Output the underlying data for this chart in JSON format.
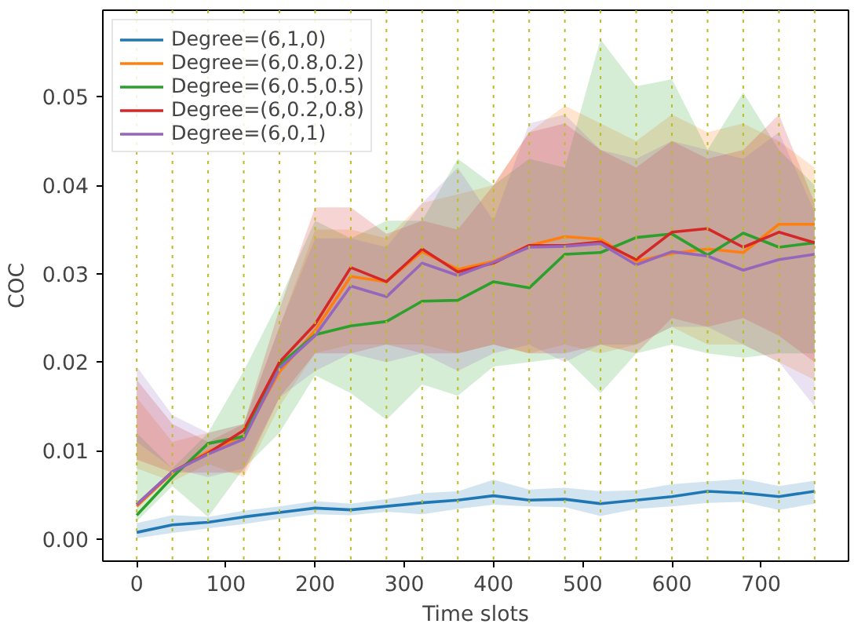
{
  "chart_data": {
    "type": "line",
    "xlabel": "Time slots",
    "ylabel": "COC",
    "x": [
      0,
      40,
      80,
      120,
      160,
      200,
      240,
      280,
      320,
      360,
      400,
      440,
      480,
      520,
      560,
      600,
      640,
      680,
      720,
      760
    ],
    "xlim": [
      -38,
      798
    ],
    "ylim": [
      -0.0025,
      0.0598
    ],
    "xticks": [
      0,
      100,
      200,
      300,
      400,
      500,
      600,
      700
    ],
    "yticks": [
      {
        "value": 0,
        "label": "0.00"
      },
      {
        "value": 0.01,
        "label": "0.01"
      },
      {
        "value": 0.02,
        "label": "0.02"
      },
      {
        "value": 0.03,
        "label": "0.03"
      },
      {
        "value": 0.04,
        "label": "0.04"
      },
      {
        "value": 0.05,
        "label": "0.05"
      }
    ],
    "grid": false,
    "legend": "top left",
    "marker": "none",
    "line_style": "solid",
    "series": [
      {
        "name": "Degree=(6,1,0)",
        "color": "#1f77b4",
        "values": [
          0.00075,
          0.0016,
          0.0019,
          0.0025,
          0.003,
          0.0035,
          0.0033,
          0.0037,
          0.0041,
          0.0044,
          0.0049,
          0.0044,
          0.0045,
          0.004,
          0.0044,
          0.0048,
          0.0054,
          0.0052,
          0.0048,
          0.0054
        ],
        "lower": [
          0.0001,
          0.0007,
          0.0012,
          0.0017,
          0.0023,
          0.0028,
          0.0027,
          0.0031,
          0.0028,
          0.0034,
          0.0039,
          0.0037,
          0.0036,
          0.0026,
          0.0034,
          0.0037,
          0.0041,
          0.0042,
          0.0033,
          0.004
        ],
        "upper": [
          0.0018,
          0.0027,
          0.0025,
          0.0032,
          0.0037,
          0.0043,
          0.004,
          0.0045,
          0.0052,
          0.0054,
          0.0067,
          0.0056,
          0.0058,
          0.0054,
          0.0055,
          0.0062,
          0.0065,
          0.0068,
          0.006,
          0.0066
        ]
      },
      {
        "name": "Degree=(6,0.8,0.2)",
        "color": "#ff7f0e",
        "values": [
          0.0037,
          0.0075,
          0.0099,
          0.0117,
          0.0189,
          0.0236,
          0.0297,
          0.0291,
          0.0325,
          0.0305,
          0.0314,
          0.0332,
          0.0342,
          0.0339,
          0.0314,
          0.0323,
          0.0328,
          0.0324,
          0.0356,
          0.0356
        ],
        "lower": [
          0.008,
          0.0065,
          0.0085,
          0.007,
          0.015,
          0.021,
          0.022,
          0.022,
          0.022,
          0.021,
          0.022,
          0.021,
          0.022,
          0.021,
          0.022,
          0.024,
          0.022,
          0.022,
          0.02,
          0.018
        ],
        "upper": [
          0.016,
          0.011,
          0.012,
          0.013,
          0.024,
          0.035,
          0.035,
          0.034,
          0.038,
          0.039,
          0.04,
          0.046,
          0.049,
          0.047,
          0.045,
          0.048,
          0.046,
          0.047,
          0.045,
          0.042
        ]
      },
      {
        "name": "Degree=(6,0.5,0.5)",
        "color": "#2ca02c",
        "values": [
          0.0027,
          0.007,
          0.0108,
          0.0116,
          0.0197,
          0.0231,
          0.0241,
          0.0246,
          0.0269,
          0.027,
          0.0291,
          0.0284,
          0.0322,
          0.0324,
          0.0341,
          0.0345,
          0.0321,
          0.0346,
          0.033,
          0.0335
        ],
        "lower": [
          0.002,
          0.006,
          0.0025,
          0.008,
          0.012,
          0.0185,
          0.0165,
          0.0135,
          0.0175,
          0.0162,
          0.0195,
          0.02,
          0.0205,
          0.0165,
          0.021,
          0.022,
          0.021,
          0.0205,
          0.021,
          0.021
        ],
        "upper": [
          0.012,
          0.008,
          0.012,
          0.019,
          0.027,
          0.036,
          0.034,
          0.036,
          0.036,
          0.043,
          0.04,
          0.043,
          0.042,
          0.0565,
          0.0512,
          0.052,
          0.044,
          0.0505,
          0.044,
          0.04
        ]
      },
      {
        "name": "Degree=(6,0.2,0.8)",
        "color": "#d62728",
        "values": [
          0.0039,
          0.0076,
          0.0097,
          0.0123,
          0.02,
          0.0243,
          0.0307,
          0.0291,
          0.0328,
          0.0302,
          0.0312,
          0.0332,
          0.0332,
          0.0336,
          0.0316,
          0.0347,
          0.0351,
          0.033,
          0.0347,
          0.0335
        ],
        "lower": [
          0.009,
          0.0075,
          0.0075,
          0.0075,
          0.016,
          0.021,
          0.021,
          0.022,
          0.021,
          0.021,
          0.022,
          0.021,
          0.021,
          0.022,
          0.021,
          0.025,
          0.024,
          0.025,
          0.023,
          0.02
        ],
        "upper": [
          0.018,
          0.013,
          0.011,
          0.013,
          0.026,
          0.0375,
          0.0375,
          0.0345,
          0.036,
          0.035,
          0.04,
          0.046,
          0.047,
          0.044,
          0.042,
          0.045,
          0.043,
          0.044,
          0.048,
          0.038
        ]
      },
      {
        "name": "Degree=(6,0,1)",
        "color": "#9467bd",
        "values": [
          0.0039,
          0.0076,
          0.0096,
          0.0113,
          0.0193,
          0.023,
          0.0286,
          0.0274,
          0.0312,
          0.0298,
          0.0313,
          0.033,
          0.0331,
          0.0334,
          0.031,
          0.0325,
          0.032,
          0.0304,
          0.0316,
          0.0322
        ],
        "lower": [
          0.011,
          0.008,
          0.007,
          0.008,
          0.016,
          0.019,
          0.021,
          0.02,
          0.021,
          0.019,
          0.021,
          0.022,
          0.02,
          0.022,
          0.022,
          0.024,
          0.024,
          0.022,
          0.02,
          0.015
        ],
        "upper": [
          0.0195,
          0.014,
          0.012,
          0.013,
          0.024,
          0.034,
          0.034,
          0.033,
          0.038,
          0.042,
          0.036,
          0.047,
          0.048,
          0.044,
          0.043,
          0.045,
          0.044,
          0.043,
          0.046,
          0.037
        ]
      }
    ],
    "ref_lines": [
      {
        "axis": "x",
        "value": 0,
        "color": "#bcbd22",
        "line_style": "dotted"
      },
      {
        "axis": "x",
        "value": 40,
        "color": "#bcbd22",
        "line_style": "dotted"
      },
      {
        "axis": "x",
        "value": 80,
        "color": "#bcbd22",
        "line_style": "dotted"
      },
      {
        "axis": "x",
        "value": 120,
        "color": "#bcbd22",
        "line_style": "dotted"
      },
      {
        "axis": "x",
        "value": 160,
        "color": "#bcbd22",
        "line_style": "dotted"
      },
      {
        "axis": "x",
        "value": 200,
        "color": "#bcbd22",
        "line_style": "dotted"
      },
      {
        "axis": "x",
        "value": 240,
        "color": "#bcbd22",
        "line_style": "dotted"
      },
      {
        "axis": "x",
        "value": 280,
        "color": "#bcbd22",
        "line_style": "dotted"
      },
      {
        "axis": "x",
        "value": 320,
        "color": "#bcbd22",
        "line_style": "dotted"
      },
      {
        "axis": "x",
        "value": 360,
        "color": "#bcbd22",
        "line_style": "dotted"
      },
      {
        "axis": "x",
        "value": 400,
        "color": "#bcbd22",
        "line_style": "dotted"
      },
      {
        "axis": "x",
        "value": 440,
        "color": "#bcbd22",
        "line_style": "dotted"
      },
      {
        "axis": "x",
        "value": 480,
        "color": "#bcbd22",
        "line_style": "dotted"
      },
      {
        "axis": "x",
        "value": 520,
        "color": "#bcbd22",
        "line_style": "dotted"
      },
      {
        "axis": "x",
        "value": 560,
        "color": "#bcbd22",
        "line_style": "dotted"
      },
      {
        "axis": "x",
        "value": 600,
        "color": "#bcbd22",
        "line_style": "dotted"
      },
      {
        "axis": "x",
        "value": 640,
        "color": "#bcbd22",
        "line_style": "dotted"
      },
      {
        "axis": "x",
        "value": 680,
        "color": "#bcbd22",
        "line_style": "dotted"
      },
      {
        "axis": "x",
        "value": 720,
        "color": "#bcbd22",
        "line_style": "dotted"
      },
      {
        "axis": "x",
        "value": 760,
        "color": "#bcbd22",
        "line_style": "dotted"
      }
    ]
  }
}
